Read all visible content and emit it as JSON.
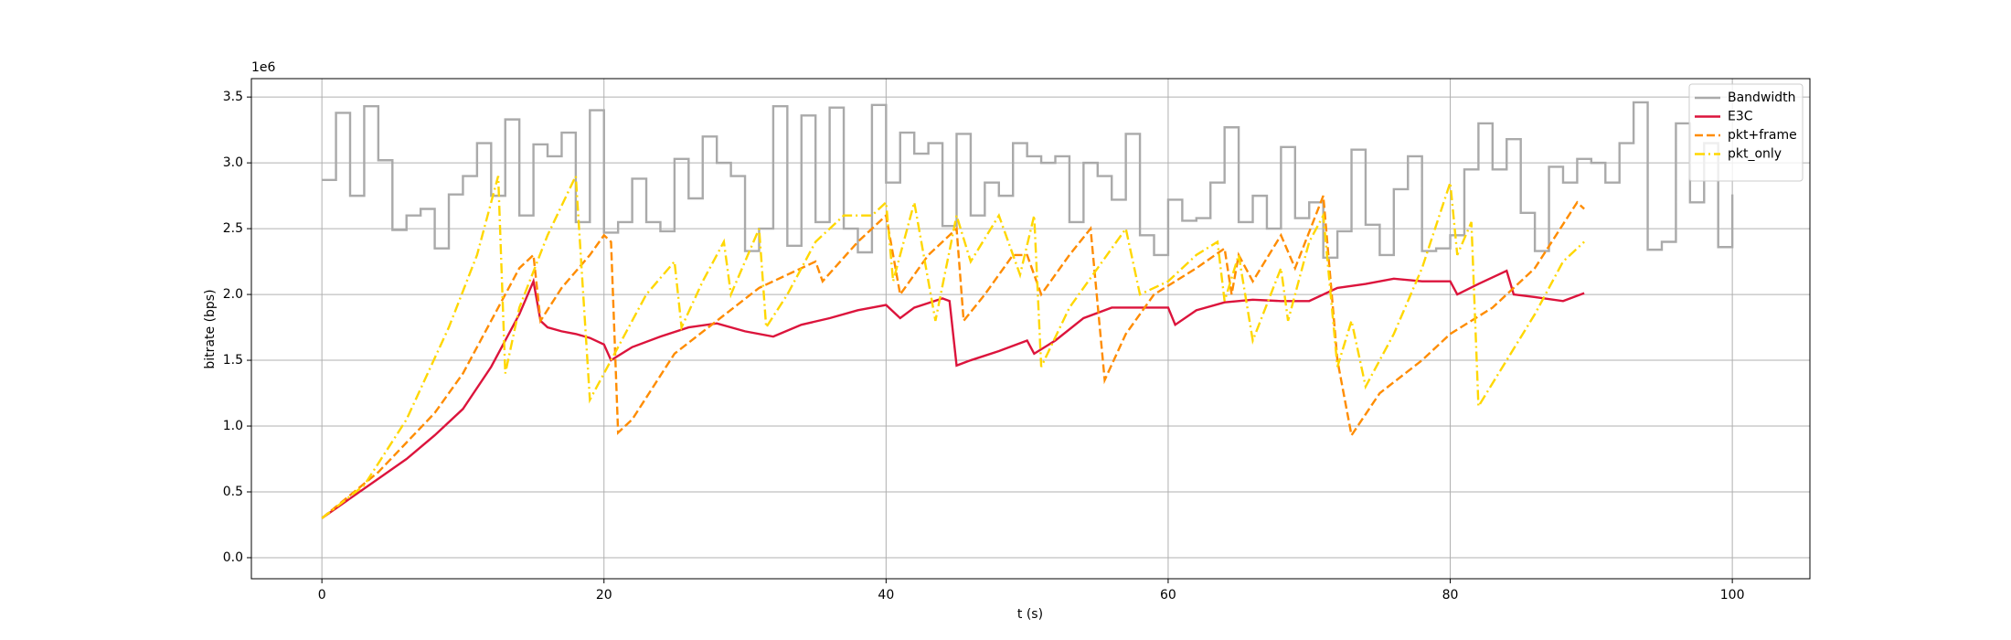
{
  "chart_data": {
    "type": "line",
    "xlabel": "t (s)",
    "ylabel": "bitrate (bps)",
    "y_offset_label": "1e6",
    "xlim": [
      -5,
      105.5
    ],
    "ylim": [
      -160000,
      3640000
    ],
    "xticks": [
      0,
      20,
      40,
      60,
      80,
      100
    ],
    "yticks": [
      {
        "value": 0,
        "label": "0.0"
      },
      {
        "value": 500000,
        "label": "0.5"
      },
      {
        "value": 1000000,
        "label": "1.0"
      },
      {
        "value": 1500000,
        "label": "1.5"
      },
      {
        "value": 2000000,
        "label": "2.0"
      },
      {
        "value": 2500000,
        "label": "2.5"
      },
      {
        "value": 3000000,
        "label": "3.0"
      },
      {
        "value": 3500000,
        "label": "3.5"
      }
    ],
    "grid": true,
    "legend": "upper right",
    "series": [
      {
        "name": "Bandwidth",
        "color": "#aaaaaa",
        "linestyle": "solid",
        "drawstyle": "steps-post",
        "x": [
          0,
          1,
          2,
          3,
          4,
          5,
          6,
          7,
          8,
          9,
          10,
          11,
          12,
          13,
          14,
          15,
          16,
          17,
          18,
          19,
          20,
          21,
          22,
          23,
          24,
          25,
          26,
          27,
          28,
          29,
          30,
          31,
          32,
          33,
          34,
          35,
          36,
          37,
          38,
          39,
          40,
          41,
          42,
          43,
          44,
          45,
          46,
          47,
          48,
          49,
          50,
          51,
          52,
          53,
          54,
          55,
          56,
          57,
          58,
          59,
          60,
          61,
          62,
          63,
          64,
          65,
          66,
          67,
          68,
          69,
          70,
          71,
          72,
          73,
          74,
          75,
          76,
          77,
          78,
          79,
          80,
          81,
          82,
          83,
          84,
          85,
          86,
          87,
          88,
          89,
          90,
          91,
          92,
          93,
          94,
          95,
          96,
          97,
          98,
          99,
          100
        ],
        "values": [
          2870000,
          3380000,
          2750000,
          3430000,
          3020000,
          2490000,
          2600000,
          2650000,
          2350000,
          2760000,
          2900000,
          3150000,
          2750000,
          3330000,
          2600000,
          3140000,
          3050000,
          3230000,
          2550000,
          3400000,
          2470000,
          2550000,
          2880000,
          2550000,
          2480000,
          3030000,
          2730000,
          3200000,
          3000000,
          2900000,
          2330000,
          2500000,
          3430000,
          2370000,
          3360000,
          2550000,
          3420000,
          2500000,
          2320000,
          3440000,
          2850000,
          3230000,
          3070000,
          3150000,
          2520000,
          3220000,
          2600000,
          2850000,
          2750000,
          3150000,
          3050000,
          3000000,
          3050000,
          2550000,
          3000000,
          2900000,
          2720000,
          3220000,
          2450000,
          2300000,
          2720000,
          2560000,
          2580000,
          2850000,
          3270000,
          2550000,
          2750000,
          2500000,
          3120000,
          2580000,
          2700000,
          2280000,
          2480000,
          3100000,
          2530000,
          2300000,
          2800000,
          3050000,
          2330000,
          2350000,
          2450000,
          2950000,
          3300000,
          2950000,
          3180000,
          2620000,
          2330000,
          2970000,
          2850000,
          3030000,
          3000000,
          2850000,
          3150000,
          3460000,
          2340000,
          2400000,
          3300000,
          2700000,
          3150000,
          2360000,
          2760000
        ]
      },
      {
        "name": "E3C",
        "color": "#dc143c",
        "linestyle": "solid",
        "x": [
          0,
          2,
          4,
          6,
          8,
          10,
          12,
          13,
          14,
          15,
          15.5,
          16,
          17,
          18,
          19,
          20,
          20.5,
          22,
          24,
          26,
          28,
          30,
          32,
          34,
          36,
          38,
          40,
          41,
          42,
          44,
          44.5,
          45,
          46,
          48,
          50,
          50.5,
          52,
          54,
          56,
          58,
          60,
          60.5,
          62,
          64,
          66,
          68,
          70,
          72,
          74,
          76,
          78,
          80,
          80.5,
          82,
          84,
          84.5,
          86,
          88,
          89.5
        ],
        "values": [
          300000,
          450000,
          600000,
          750000,
          930000,
          1130000,
          1450000,
          1650000,
          1850000,
          2100000,
          1800000,
          1750000,
          1720000,
          1700000,
          1670000,
          1620000,
          1500000,
          1600000,
          1680000,
          1750000,
          1780000,
          1720000,
          1680000,
          1770000,
          1820000,
          1880000,
          1920000,
          1820000,
          1900000,
          1970000,
          1950000,
          1460000,
          1500000,
          1570000,
          1650000,
          1550000,
          1650000,
          1820000,
          1900000,
          1900000,
          1900000,
          1770000,
          1880000,
          1940000,
          1960000,
          1950000,
          1950000,
          2050000,
          2080000,
          2120000,
          2100000,
          2100000,
          2000000,
          2080000,
          2180000,
          2000000,
          1980000,
          1950000,
          2010000
        ]
      },
      {
        "name": "pkt+frame",
        "color": "#ff8c00",
        "linestyle": "dashed",
        "x": [
          0,
          4,
          8,
          10,
          12,
          14,
          15,
          15.5,
          17,
          19,
          20,
          20.5,
          21,
          22,
          25,
          28,
          31,
          34,
          35,
          35.5,
          38,
          40,
          41,
          43,
          45,
          45.5,
          47,
          49,
          50,
          51,
          53,
          54.5,
          55.5,
          57,
          59,
          62,
          64,
          64.5,
          65,
          66,
          68,
          69,
          71,
          72,
          73,
          75,
          78,
          80,
          83,
          86,
          89,
          89.5
        ],
        "values": [
          300000,
          650000,
          1100000,
          1400000,
          1800000,
          2200000,
          2300000,
          1800000,
          2050000,
          2300000,
          2450000,
          2400000,
          950000,
          1050000,
          1550000,
          1800000,
          2050000,
          2200000,
          2250000,
          2100000,
          2400000,
          2600000,
          2000000,
          2300000,
          2500000,
          1800000,
          2000000,
          2300000,
          2300000,
          2000000,
          2300000,
          2500000,
          1350000,
          1700000,
          2000000,
          2200000,
          2350000,
          2000000,
          2300000,
          2100000,
          2450000,
          2200000,
          2750000,
          1500000,
          930000,
          1250000,
          1500000,
          1700000,
          1900000,
          2200000,
          2700000,
          2650000
        ]
      },
      {
        "name": "pkt_only",
        "color": "#ffd700",
        "linestyle": "dashdot",
        "x": [
          0,
          3,
          6,
          9,
          11,
          12.5,
          13,
          14,
          16,
          18,
          19,
          21,
          23,
          25,
          25.5,
          27,
          28.5,
          29,
          31,
          31.5,
          33,
          35,
          37,
          39,
          40,
          40.5,
          42,
          43.5,
          45,
          46,
          48,
          49.5,
          50.5,
          51,
          53,
          55,
          57,
          58,
          60,
          62,
          63.5,
          64,
          65,
          66,
          68,
          68.5,
          70,
          71,
          72,
          73,
          74,
          76,
          78,
          80,
          80.5,
          81.5,
          82,
          84,
          86,
          88,
          89.5
        ],
        "values": [
          300000,
          550000,
          1050000,
          1750000,
          2300000,
          2900000,
          1400000,
          1900000,
          2450000,
          2900000,
          1200000,
          1600000,
          2000000,
          2250000,
          1750000,
          2100000,
          2400000,
          2000000,
          2500000,
          1750000,
          2000000,
          2400000,
          2600000,
          2600000,
          2700000,
          2100000,
          2700000,
          1800000,
          2600000,
          2250000,
          2600000,
          2150000,
          2600000,
          1450000,
          1900000,
          2200000,
          2500000,
          2000000,
          2100000,
          2300000,
          2400000,
          1950000,
          2300000,
          1650000,
          2200000,
          1800000,
          2400000,
          2600000,
          1450000,
          1800000,
          1300000,
          1700000,
          2200000,
          2850000,
          2300000,
          2550000,
          1150000,
          1500000,
          1850000,
          2250000,
          2400000
        ]
      }
    ]
  }
}
